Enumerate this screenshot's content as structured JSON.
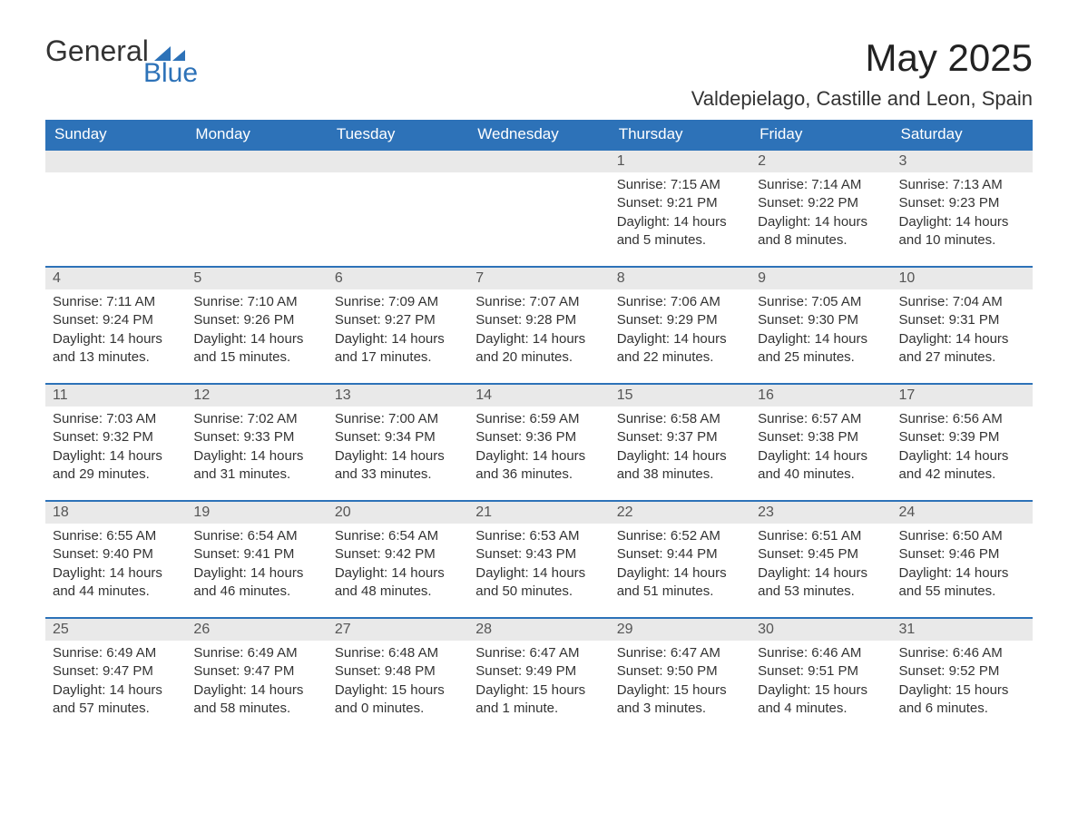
{
  "logo": {
    "text_general": "General",
    "text_blue": "Blue",
    "accent_color": "#2d72b8"
  },
  "header": {
    "month_title": "May 2025",
    "location": "Valdepielago, Castille and Leon, Spain"
  },
  "calendar": {
    "type": "table",
    "columns": [
      "Sunday",
      "Monday",
      "Tuesday",
      "Wednesday",
      "Thursday",
      "Friday",
      "Saturday"
    ],
    "header_bg": "#2d72b8",
    "header_fg": "#ffffff",
    "row_divider_color": "#2d72b8",
    "daynum_bg": "#e9e9e9",
    "daynum_fg": "#555555",
    "body_fg": "#333333",
    "font_size_header": 17,
    "font_size_daynum": 16,
    "font_size_body": 15,
    "weeks": [
      [
        null,
        null,
        null,
        null,
        {
          "n": "1",
          "sunrise": "Sunrise: 7:15 AM",
          "sunset": "Sunset: 9:21 PM",
          "daylight": "Daylight: 14 hours and 5 minutes."
        },
        {
          "n": "2",
          "sunrise": "Sunrise: 7:14 AM",
          "sunset": "Sunset: 9:22 PM",
          "daylight": "Daylight: 14 hours and 8 minutes."
        },
        {
          "n": "3",
          "sunrise": "Sunrise: 7:13 AM",
          "sunset": "Sunset: 9:23 PM",
          "daylight": "Daylight: 14 hours and 10 minutes."
        }
      ],
      [
        {
          "n": "4",
          "sunrise": "Sunrise: 7:11 AM",
          "sunset": "Sunset: 9:24 PM",
          "daylight": "Daylight: 14 hours and 13 minutes."
        },
        {
          "n": "5",
          "sunrise": "Sunrise: 7:10 AM",
          "sunset": "Sunset: 9:26 PM",
          "daylight": "Daylight: 14 hours and 15 minutes."
        },
        {
          "n": "6",
          "sunrise": "Sunrise: 7:09 AM",
          "sunset": "Sunset: 9:27 PM",
          "daylight": "Daylight: 14 hours and 17 minutes."
        },
        {
          "n": "7",
          "sunrise": "Sunrise: 7:07 AM",
          "sunset": "Sunset: 9:28 PM",
          "daylight": "Daylight: 14 hours and 20 minutes."
        },
        {
          "n": "8",
          "sunrise": "Sunrise: 7:06 AM",
          "sunset": "Sunset: 9:29 PM",
          "daylight": "Daylight: 14 hours and 22 minutes."
        },
        {
          "n": "9",
          "sunrise": "Sunrise: 7:05 AM",
          "sunset": "Sunset: 9:30 PM",
          "daylight": "Daylight: 14 hours and 25 minutes."
        },
        {
          "n": "10",
          "sunrise": "Sunrise: 7:04 AM",
          "sunset": "Sunset: 9:31 PM",
          "daylight": "Daylight: 14 hours and 27 minutes."
        }
      ],
      [
        {
          "n": "11",
          "sunrise": "Sunrise: 7:03 AM",
          "sunset": "Sunset: 9:32 PM",
          "daylight": "Daylight: 14 hours and 29 minutes."
        },
        {
          "n": "12",
          "sunrise": "Sunrise: 7:02 AM",
          "sunset": "Sunset: 9:33 PM",
          "daylight": "Daylight: 14 hours and 31 minutes."
        },
        {
          "n": "13",
          "sunrise": "Sunrise: 7:00 AM",
          "sunset": "Sunset: 9:34 PM",
          "daylight": "Daylight: 14 hours and 33 minutes."
        },
        {
          "n": "14",
          "sunrise": "Sunrise: 6:59 AM",
          "sunset": "Sunset: 9:36 PM",
          "daylight": "Daylight: 14 hours and 36 minutes."
        },
        {
          "n": "15",
          "sunrise": "Sunrise: 6:58 AM",
          "sunset": "Sunset: 9:37 PM",
          "daylight": "Daylight: 14 hours and 38 minutes."
        },
        {
          "n": "16",
          "sunrise": "Sunrise: 6:57 AM",
          "sunset": "Sunset: 9:38 PM",
          "daylight": "Daylight: 14 hours and 40 minutes."
        },
        {
          "n": "17",
          "sunrise": "Sunrise: 6:56 AM",
          "sunset": "Sunset: 9:39 PM",
          "daylight": "Daylight: 14 hours and 42 minutes."
        }
      ],
      [
        {
          "n": "18",
          "sunrise": "Sunrise: 6:55 AM",
          "sunset": "Sunset: 9:40 PM",
          "daylight": "Daylight: 14 hours and 44 minutes."
        },
        {
          "n": "19",
          "sunrise": "Sunrise: 6:54 AM",
          "sunset": "Sunset: 9:41 PM",
          "daylight": "Daylight: 14 hours and 46 minutes."
        },
        {
          "n": "20",
          "sunrise": "Sunrise: 6:54 AM",
          "sunset": "Sunset: 9:42 PM",
          "daylight": "Daylight: 14 hours and 48 minutes."
        },
        {
          "n": "21",
          "sunrise": "Sunrise: 6:53 AM",
          "sunset": "Sunset: 9:43 PM",
          "daylight": "Daylight: 14 hours and 50 minutes."
        },
        {
          "n": "22",
          "sunrise": "Sunrise: 6:52 AM",
          "sunset": "Sunset: 9:44 PM",
          "daylight": "Daylight: 14 hours and 51 minutes."
        },
        {
          "n": "23",
          "sunrise": "Sunrise: 6:51 AM",
          "sunset": "Sunset: 9:45 PM",
          "daylight": "Daylight: 14 hours and 53 minutes."
        },
        {
          "n": "24",
          "sunrise": "Sunrise: 6:50 AM",
          "sunset": "Sunset: 9:46 PM",
          "daylight": "Daylight: 14 hours and 55 minutes."
        }
      ],
      [
        {
          "n": "25",
          "sunrise": "Sunrise: 6:49 AM",
          "sunset": "Sunset: 9:47 PM",
          "daylight": "Daylight: 14 hours and 57 minutes."
        },
        {
          "n": "26",
          "sunrise": "Sunrise: 6:49 AM",
          "sunset": "Sunset: 9:47 PM",
          "daylight": "Daylight: 14 hours and 58 minutes."
        },
        {
          "n": "27",
          "sunrise": "Sunrise: 6:48 AM",
          "sunset": "Sunset: 9:48 PM",
          "daylight": "Daylight: 15 hours and 0 minutes."
        },
        {
          "n": "28",
          "sunrise": "Sunrise: 6:47 AM",
          "sunset": "Sunset: 9:49 PM",
          "daylight": "Daylight: 15 hours and 1 minute."
        },
        {
          "n": "29",
          "sunrise": "Sunrise: 6:47 AM",
          "sunset": "Sunset: 9:50 PM",
          "daylight": "Daylight: 15 hours and 3 minutes."
        },
        {
          "n": "30",
          "sunrise": "Sunrise: 6:46 AM",
          "sunset": "Sunset: 9:51 PM",
          "daylight": "Daylight: 15 hours and 4 minutes."
        },
        {
          "n": "31",
          "sunrise": "Sunrise: 6:46 AM",
          "sunset": "Sunset: 9:52 PM",
          "daylight": "Daylight: 15 hours and 6 minutes."
        }
      ]
    ]
  }
}
